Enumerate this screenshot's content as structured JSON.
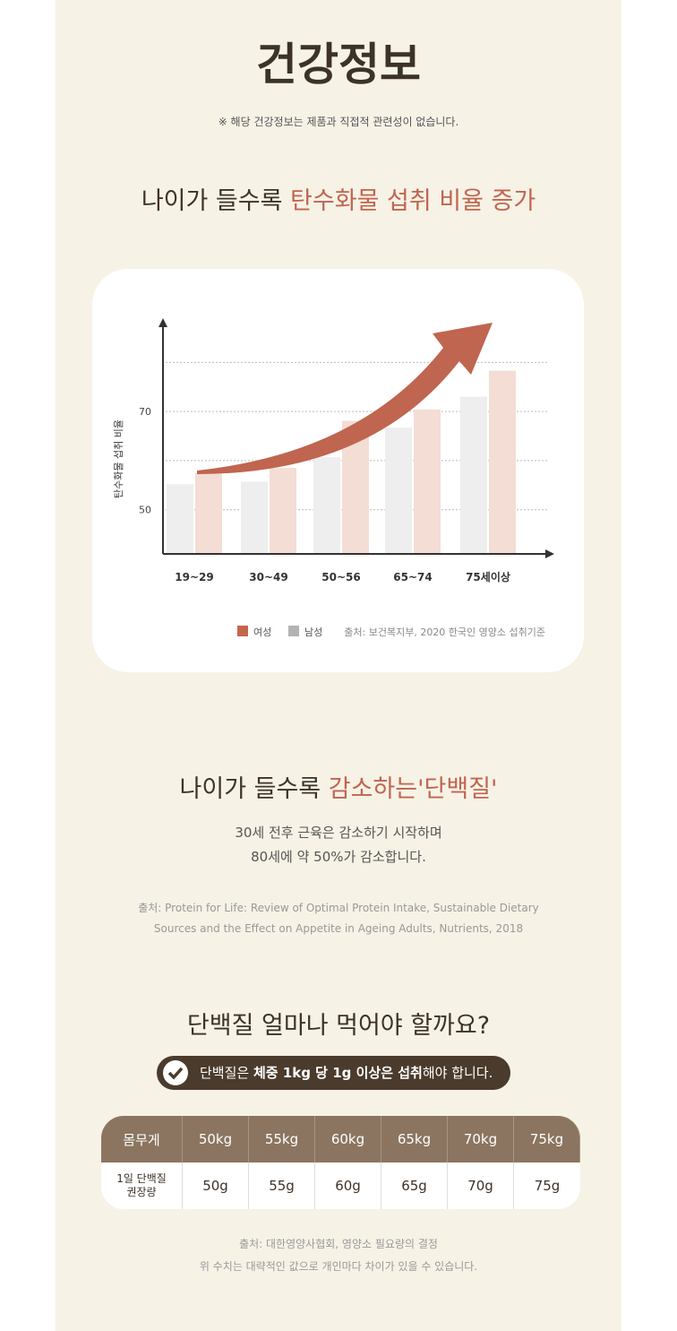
{
  "header": {
    "title": "건강정보",
    "note": "※ 해당 건강정보는 제품과 직접적 관련성이 없습니다."
  },
  "section1": {
    "heading": [
      "나이가 들수록",
      "탄수화물 섭취 비율 증가"
    ]
  },
  "chart_data": {
    "type": "bar",
    "y_label": "탄수화물 섭취 비율",
    "categories": [
      "19~29",
      "30~49",
      "50~56",
      "65~74",
      "75세이상"
    ],
    "series": [
      {
        "name": "남성",
        "color": "#eeeeee",
        "legend_color": "#b3b3b3",
        "values": [
          55.2,
          55.7,
          60.7,
          66.7,
          73
        ]
      },
      {
        "name": "여성",
        "color": "#f4ddd4",
        "legend_color": "#c4664e",
        "values": [
          57.4,
          58.5,
          68.1,
          70.4,
          78.3
        ]
      }
    ],
    "legend_order": [
      1,
      0
    ],
    "ylim": [
      41,
      89
    ],
    "yticks": [
      50,
      70
    ],
    "gridlines": [
      50,
      60,
      70,
      80
    ],
    "grid": true,
    "source": "출처: 보건복지부, 2020 한국인 영양소 섭취기준"
  },
  "section2": {
    "heading": [
      "나이가 들수록",
      "감소하는'단백질'"
    ],
    "body": [
      "30세 전후 근육은 감소하기 시작하며",
      "80세에 약 50%가 감소합니다."
    ],
    "source": [
      "출처: Protein for Life: Review of Optimal Protein Intake, Sustainable Dietary",
      "Sources and the Effect on Appetite in Ageing Adults, Nutrients, 2018"
    ]
  },
  "section3": {
    "heading": "단백질 얼마나 먹어야 할까요?",
    "badge": [
      "단백질은",
      "체중 1kg 당 1g 이상은 섭취",
      "해야 합니다."
    ],
    "table": {
      "header": [
        "몸무게",
        "50kg",
        "55kg",
        "60kg",
        "65kg",
        "70kg",
        "75kg"
      ],
      "rows": [
        [
          "1일 단백질\n권장량",
          "50g",
          "55g",
          "60g",
          "65g",
          "70g",
          "75g"
        ]
      ]
    },
    "footnote": [
      "출처: 대한영양사협회, 영양소 필요량의 결정",
      "위 수치는 대략적인 값으로 개인마다 차이가 있을 수 있습니다."
    ]
  }
}
